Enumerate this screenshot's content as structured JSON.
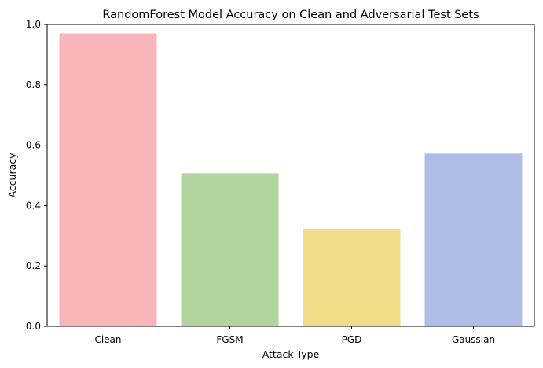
{
  "chart_data": {
    "type": "bar",
    "title": "RandomForest Model Accuracy on Clean and Adversarial Test Sets",
    "xlabel": "Attack Type",
    "ylabel": "Accuracy",
    "categories": [
      "Clean",
      "FGSM",
      "PGD",
      "Gaussian"
    ],
    "values": [
      0.97,
      0.507,
      0.323,
      0.572
    ],
    "colors": [
      "#f8b6ba",
      "#b2d49e",
      "#f2dc88",
      "#aebce6"
    ],
    "ylim": [
      0,
      1.0
    ],
    "yticks": [
      0.0,
      0.2,
      0.4,
      0.6,
      0.8,
      1.0
    ],
    "ytick_labels": [
      "0.0",
      "0.2",
      "0.4",
      "0.6",
      "0.8",
      "1.0"
    ],
    "grid": false,
    "legend": "none"
  }
}
